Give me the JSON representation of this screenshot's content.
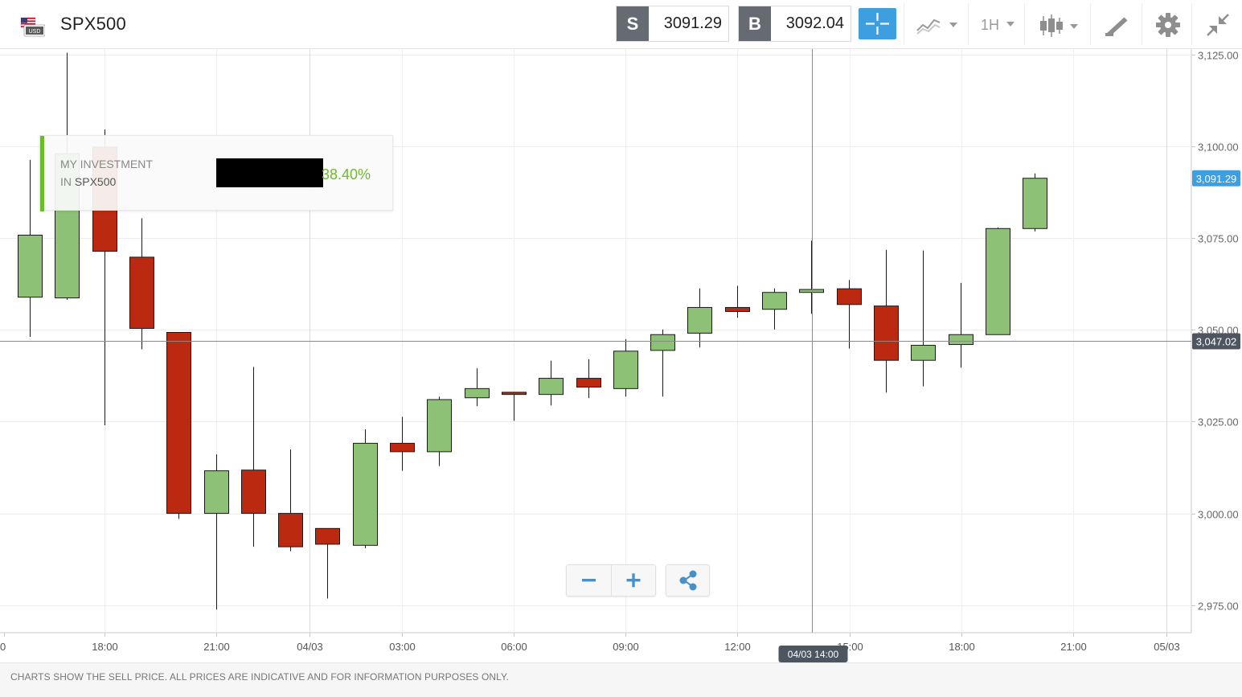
{
  "header": {
    "symbol": "SPX500",
    "flag_badge": "USD",
    "sell": {
      "tag": "S",
      "price": "3091.29"
    },
    "buy": {
      "tag": "B",
      "price": "3092.04"
    },
    "interval": "1H",
    "icons": [
      "crosshair-icon",
      "chart-type-icon",
      "candlestick-icon",
      "drawing-tools-icon",
      "gear-icon",
      "collapse-icon"
    ]
  },
  "investment": {
    "line1": "MY INVESTMENT",
    "line2_prefix": "IN",
    "line2_symbol": "SPX500",
    "percent": "38.40%"
  },
  "crosshair": {
    "time_label": "04/03 14:00",
    "price_label": "3,047.02"
  },
  "last_price_label": "3,091.29",
  "footer": {
    "disclaimer": "CHARTS SHOW THE SELL PRICE. ALL PRICES ARE INDICATIVE AND FOR INFORMATION PURPOSES ONLY."
  },
  "colors": {
    "up": "#8dc276",
    "down": "#bb2a10",
    "accent_blue": "#3d9fe0",
    "accent_green": "#6cbb2c"
  },
  "chart_data": {
    "type": "candlestick",
    "interval": "1H",
    "y_ticks": [
      "2,975.00",
      "3,000.00",
      "3,025.00",
      "3,050.00",
      "3,075.00",
      "3,100.00",
      "3,125.00"
    ],
    "x_ticks": [
      "0",
      "18:00",
      "21:00",
      "04/03",
      "03:00",
      "06:00",
      "09:00",
      "12:00",
      "15:00",
      "18:00",
      "21:00",
      "05/03"
    ],
    "ylim": [
      2967.5,
      3126.5
    ],
    "candles": [
      {
        "o": 3058.9,
        "h": 3096.3,
        "l": 3048.1,
        "c": 3075.8
      },
      {
        "o": 3058.7,
        "h": 3125.5,
        "l": 3058.2,
        "c": 3098.0
      },
      {
        "o": 3099.8,
        "h": 3104.6,
        "l": 3024.0,
        "c": 3071.4
      },
      {
        "o": 3069.8,
        "h": 3080.4,
        "l": 3044.7,
        "c": 3050.4
      },
      {
        "o": 3049.3,
        "h": 3049.3,
        "l": 2998.5,
        "c": 3000.0
      },
      {
        "o": 3000.0,
        "h": 3016.1,
        "l": 2973.8,
        "c": 3011.6
      },
      {
        "o": 3011.8,
        "h": 3039.9,
        "l": 2990.9,
        "c": 3000.0
      },
      {
        "o": 3000.0,
        "h": 3017.4,
        "l": 2989.7,
        "c": 2990.9
      },
      {
        "o": 2995.9,
        "h": 2995.9,
        "l": 2976.8,
        "c": 2991.6
      },
      {
        "o": 2991.3,
        "h": 3022.9,
        "l": 2990.5,
        "c": 3019.1
      },
      {
        "o": 3019.1,
        "h": 3026.3,
        "l": 3011.6,
        "c": 3016.8
      },
      {
        "o": 3016.8,
        "h": 3031.8,
        "l": 3012.9,
        "c": 3031.0
      },
      {
        "o": 3031.5,
        "h": 3039.5,
        "l": 3029.2,
        "c": 3034.0
      },
      {
        "o": 3033.0,
        "h": 3033.0,
        "l": 3025.2,
        "c": 3032.4
      },
      {
        "o": 3032.4,
        "h": 3041.6,
        "l": 3029.4,
        "c": 3036.8
      },
      {
        "o": 3036.8,
        "h": 3042.0,
        "l": 3031.4,
        "c": 3034.4
      },
      {
        "o": 3034.0,
        "h": 3047.5,
        "l": 3031.8,
        "c": 3044.2
      },
      {
        "o": 3044.4,
        "h": 3050.1,
        "l": 3031.8,
        "c": 3048.7
      },
      {
        "o": 3049.1,
        "h": 3061.3,
        "l": 3045.2,
        "c": 3056.1
      },
      {
        "o": 3056.1,
        "h": 3062.0,
        "l": 3053.3,
        "c": 3055.0
      },
      {
        "o": 3055.6,
        "h": 3061.3,
        "l": 3050.1,
        "c": 3060.2
      },
      {
        "o": 3060.2,
        "h": 3074.3,
        "l": 3054.4,
        "c": 3061.0
      },
      {
        "o": 3061.2,
        "h": 3063.6,
        "l": 3044.9,
        "c": 3056.9
      },
      {
        "o": 3056.5,
        "h": 3071.8,
        "l": 3032.9,
        "c": 3041.7
      },
      {
        "o": 3041.7,
        "h": 3071.6,
        "l": 3034.6,
        "c": 3045.8
      },
      {
        "o": 3046.0,
        "h": 3062.8,
        "l": 3039.7,
        "c": 3048.7
      },
      {
        "o": 3048.7,
        "h": 3077.9,
        "l": 3048.7,
        "c": 3077.6
      },
      {
        "o": 3077.6,
        "h": 3092.6,
        "l": 3076.8,
        "c": 3091.3
      }
    ]
  }
}
